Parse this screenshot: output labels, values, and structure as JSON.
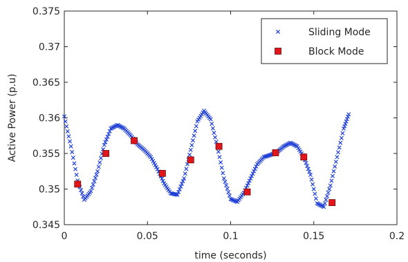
{
  "chart_data": {
    "type": "scatter",
    "title": "",
    "xlabel": "time (seconds)",
    "ylabel": "Active Power (p.u)",
    "xlim": [
      0,
      0.2
    ],
    "ylim": [
      0.345,
      0.375
    ],
    "x_ticks": [
      "0",
      "0.05",
      "0.1",
      "0.15",
      "0.2"
    ],
    "y_ticks": [
      "0.345",
      "0.35",
      "0.355",
      "0.36",
      "0.365",
      "0.37",
      "0.375"
    ],
    "grid": false,
    "legend": "top-right",
    "series": [
      {
        "name": "Sliding Mode",
        "marker": "x",
        "color": "#1f3fd6",
        "x": [
          0.0,
          0.004,
          0.008,
          0.012,
          0.016,
          0.02,
          0.024,
          0.028,
          0.032,
          0.036,
          0.04,
          0.044,
          0.048,
          0.052,
          0.056,
          0.06,
          0.064,
          0.068,
          0.072,
          0.076,
          0.08,
          0.084,
          0.088,
          0.092,
          0.096,
          0.1,
          0.104,
          0.108,
          0.112,
          0.116,
          0.12,
          0.124,
          0.128,
          0.132,
          0.136,
          0.14,
          0.144,
          0.148,
          0.152,
          0.156,
          0.16,
          0.164,
          0.168,
          0.171
        ],
        "y": [
          0.3602,
          0.356,
          0.3512,
          0.3485,
          0.3497,
          0.3525,
          0.3562,
          0.3585,
          0.359,
          0.3585,
          0.3575,
          0.3563,
          0.3555,
          0.3545,
          0.3528,
          0.3508,
          0.3494,
          0.3492,
          0.3515,
          0.3555,
          0.3595,
          0.361,
          0.3598,
          0.356,
          0.3515,
          0.3486,
          0.3482,
          0.3495,
          0.3515,
          0.3535,
          0.3545,
          0.3548,
          0.3552,
          0.356,
          0.3565,
          0.356,
          0.3545,
          0.352,
          0.348,
          0.3475,
          0.3505,
          0.3545,
          0.3585,
          0.3605
        ]
      },
      {
        "name": "Block Mode",
        "marker": "square",
        "color": "#e0161c",
        "x": [
          0.008,
          0.025,
          0.042,
          0.059,
          0.076,
          0.093,
          0.11,
          0.127,
          0.144,
          0.161
        ],
        "y": [
          0.3507,
          0.355,
          0.3568,
          0.3522,
          0.3541,
          0.356,
          0.3496,
          0.3551,
          0.3545,
          0.3481
        ]
      }
    ]
  }
}
